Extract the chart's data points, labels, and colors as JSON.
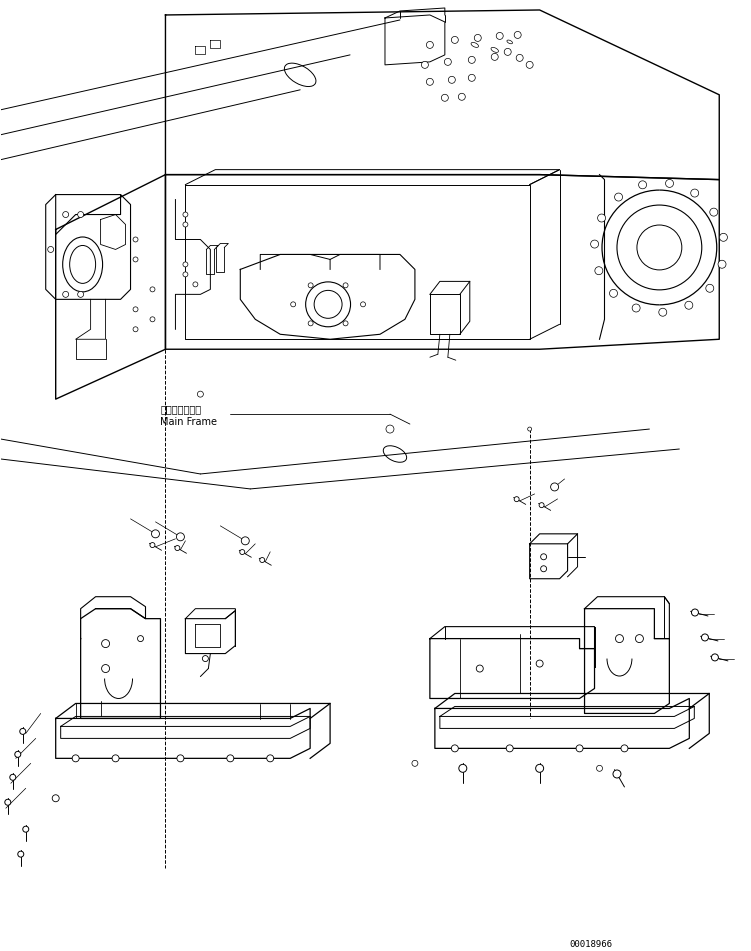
{
  "background_color": "#ffffff",
  "line_color": "#000000",
  "text_color": "#000000",
  "figure_width": 7.51,
  "figure_height": 9.51,
  "dpi": 100,
  "label_japanese": "メインフレーム",
  "label_english": "Main Frame",
  "part_number": "00018966",
  "font_size_label": 7,
  "font_size_part": 6.5
}
